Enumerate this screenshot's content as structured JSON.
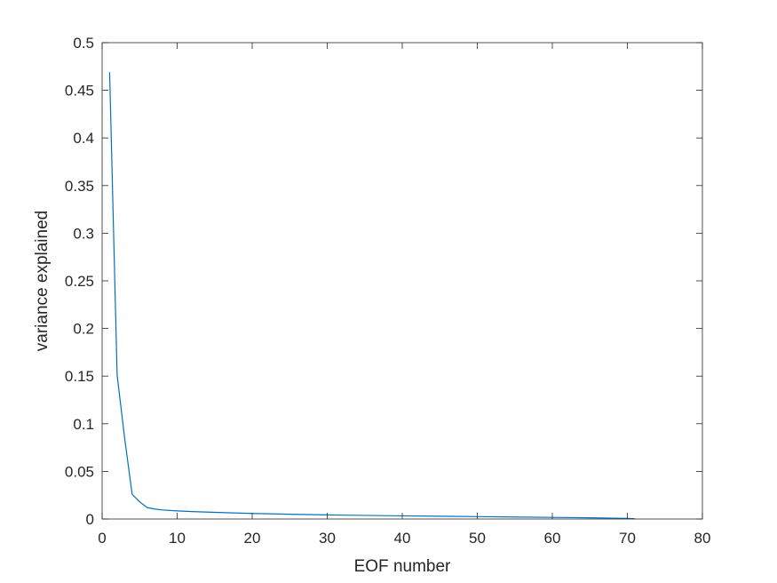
{
  "chart_data": {
    "type": "line",
    "title": "",
    "xlabel": "EOF number",
    "ylabel": "variance explained",
    "xlim": [
      0,
      80
    ],
    "ylim": [
      0,
      0.5
    ],
    "xticks": [
      0,
      10,
      20,
      30,
      40,
      50,
      60,
      70,
      80
    ],
    "xtick_labels": [
      "0",
      "10",
      "20",
      "30",
      "40",
      "50",
      "60",
      "70",
      "80"
    ],
    "yticks": [
      0,
      0.05,
      0.1,
      0.15,
      0.2,
      0.25,
      0.3,
      0.35,
      0.4,
      0.45,
      0.5
    ],
    "ytick_labels": [
      "0",
      "0.05",
      "0.1",
      "0.15",
      "0.2",
      "0.25",
      "0.3",
      "0.35",
      "0.4",
      "0.45",
      "0.5"
    ],
    "grid": false,
    "series": [
      {
        "name": "variance explained",
        "color": "#0072bd",
        "x": [
          1,
          2,
          3,
          4,
          5,
          6,
          7,
          8,
          10,
          12,
          15,
          20,
          25,
          30,
          35,
          40,
          45,
          50,
          55,
          60,
          65,
          70,
          71
        ],
        "y": [
          0.469,
          0.151,
          0.085,
          0.026,
          0.018,
          0.012,
          0.0105,
          0.0095,
          0.0085,
          0.0078,
          0.007,
          0.0058,
          0.005,
          0.0043,
          0.0038,
          0.0033,
          0.0029,
          0.0025,
          0.0021,
          0.0017,
          0.0013,
          0.0006,
          0.0003
        ]
      }
    ]
  }
}
